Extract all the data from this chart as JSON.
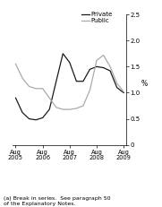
{
  "title": "",
  "ylabel": "%",
  "ylim": [
    0,
    2.5
  ],
  "yticks": [
    0,
    0.5,
    1.0,
    1.5,
    2.0,
    2.5
  ],
  "ytick_labels": [
    "0",
    "0.5",
    "1.0",
    "1.5",
    "2.0",
    "2.5"
  ],
  "footnote": "(a) Break in series.  See paragraph 50\nof the Explanatory Notes.",
  "private": {
    "x": [
      0,
      0.5,
      1.0,
      1.5,
      2.0,
      2.5,
      3.5,
      4.0,
      4.5,
      5.0,
      5.5,
      6.0,
      6.5,
      7.0,
      7.5,
      8.0
    ],
    "y": [
      0.9,
      0.62,
      0.5,
      0.48,
      0.52,
      0.68,
      1.75,
      1.58,
      1.22,
      1.22,
      1.45,
      1.5,
      1.48,
      1.42,
      1.1,
      1.0
    ],
    "color": "#1a1a1a",
    "linewidth": 0.9
  },
  "public": {
    "x": [
      0,
      0.5,
      1.0,
      1.5,
      2.0,
      3.0,
      3.5,
      4.0,
      4.5,
      5.0,
      5.5,
      6.0,
      6.5,
      7.0,
      7.5,
      8.0
    ],
    "y": [
      1.55,
      1.28,
      1.12,
      1.08,
      1.08,
      0.72,
      0.68,
      0.68,
      0.7,
      0.75,
      1.05,
      1.62,
      1.72,
      1.5,
      1.18,
      1.02
    ],
    "color": "#aaaaaa",
    "linewidth": 0.9
  },
  "xtick_positions": [
    0,
    2.0,
    4.0,
    6.0,
    8.0
  ],
  "xtick_labels": [
    "Aug\n2005",
    "Aug\n2006",
    "Aug\n2007",
    "Aug\n2008",
    "Aug\n2009"
  ],
  "background_color": "#ffffff"
}
